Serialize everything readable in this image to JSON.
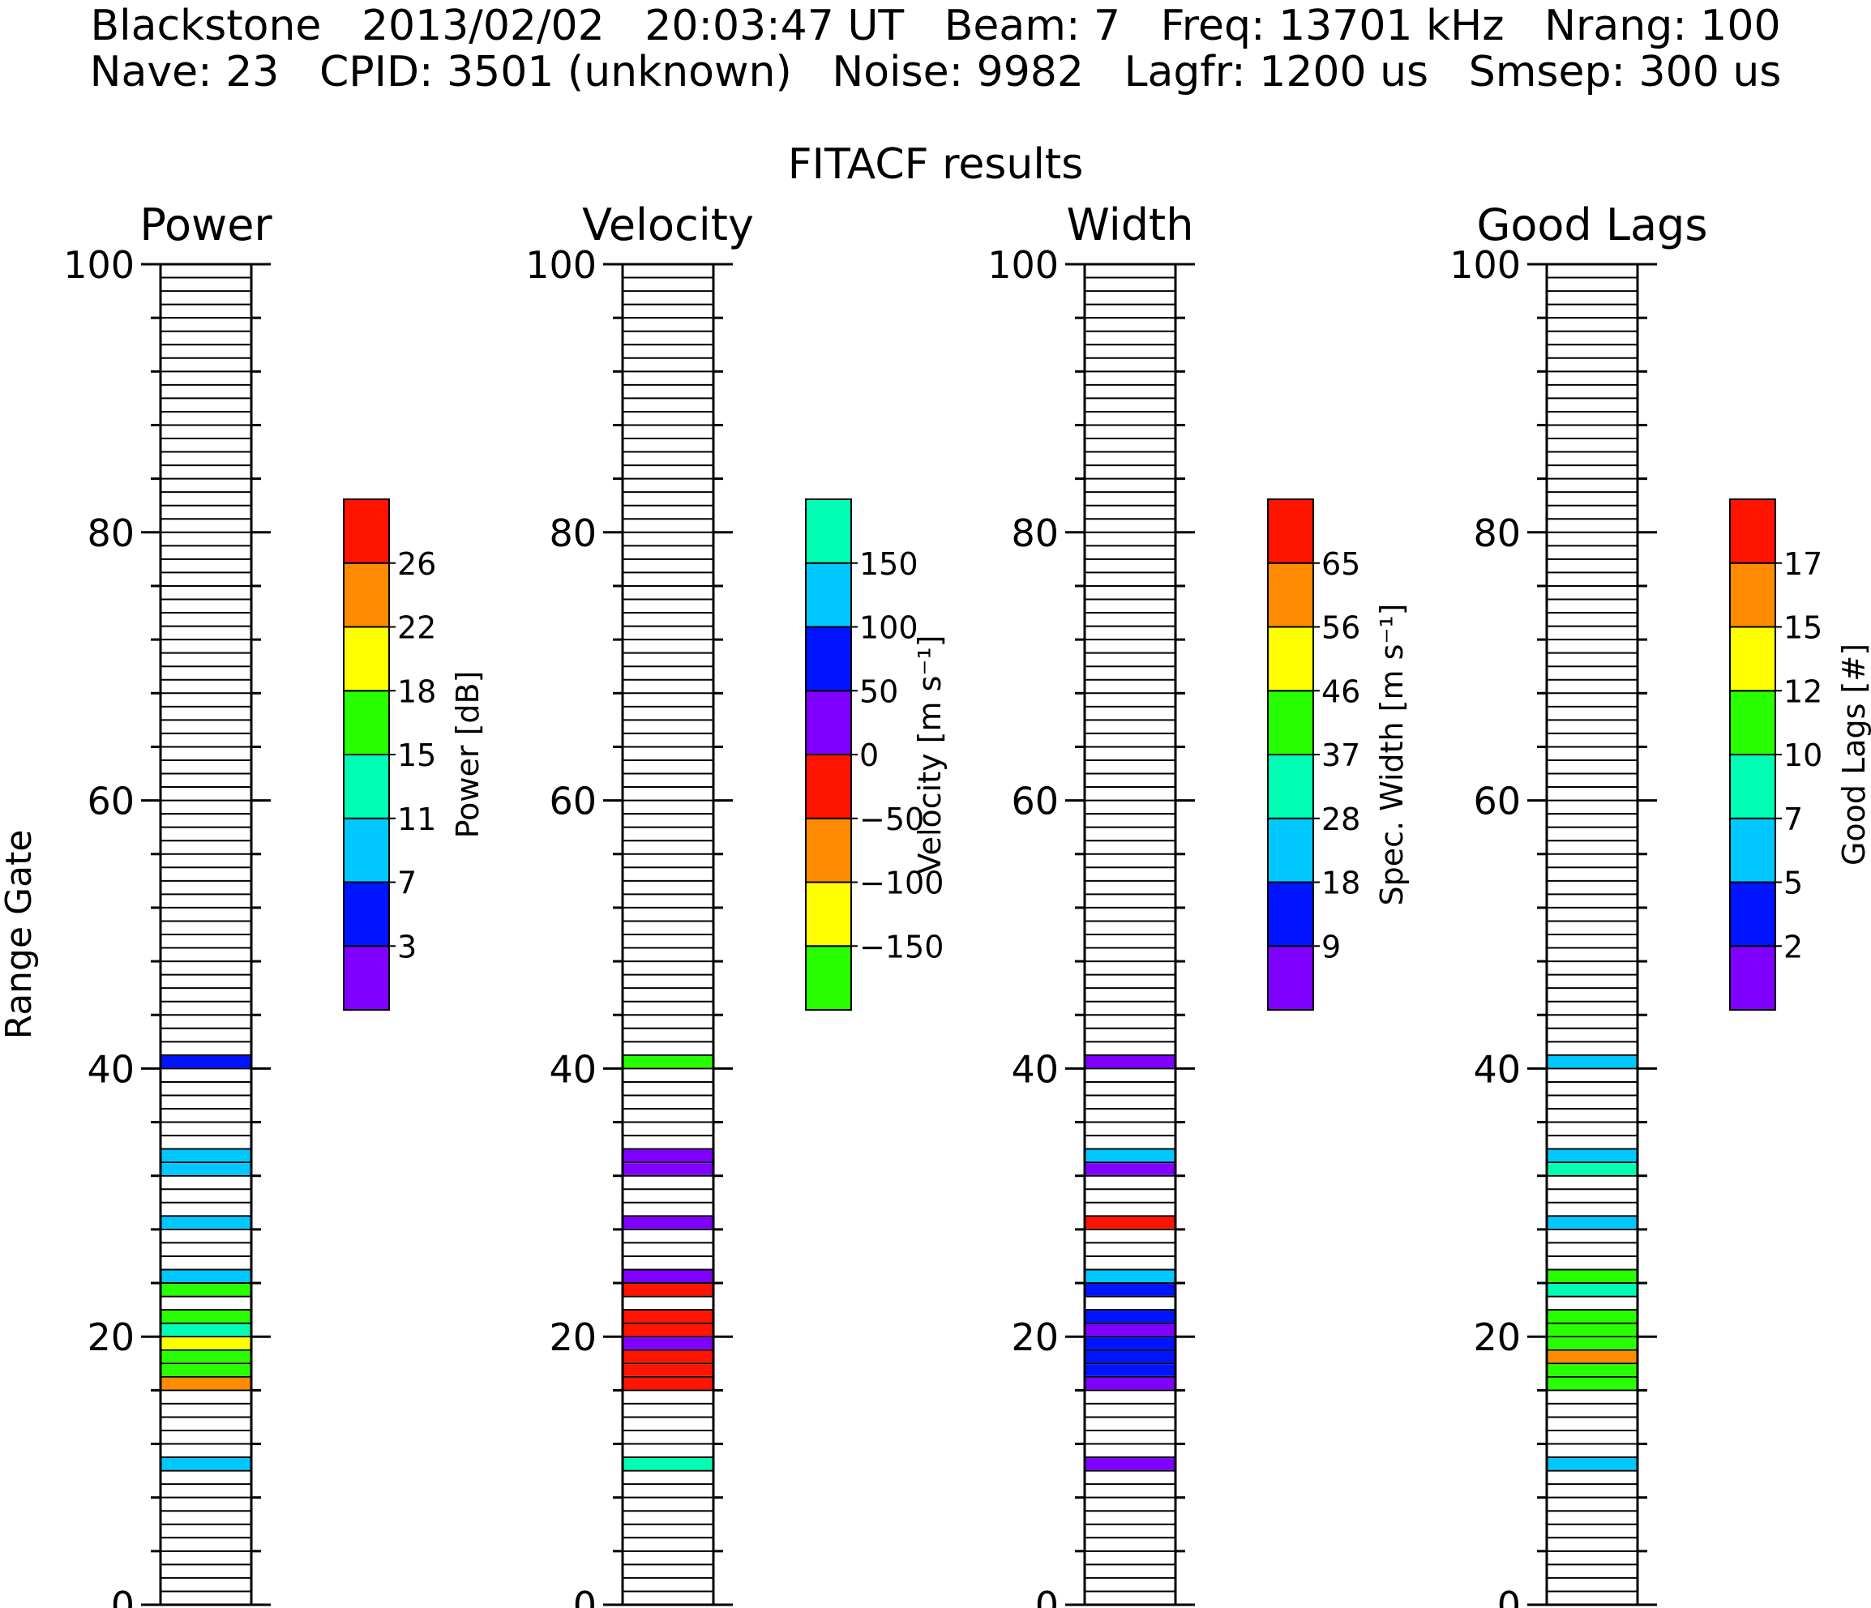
{
  "header": {
    "line1": "Blackstone   2013/02/02   20:03:47 UT   Beam: 7   Freq: 13701 kHz   Nrang: 100",
    "line2": "Nave: 23   CPID: 3501 (unknown)   Noise: 9982   Lagfr: 1200 us   Smsep: 300 us",
    "line3": "FITACF results"
  },
  "palette": [
    "#8000ff",
    "#0014ff",
    "#00c8ff",
    "#00ffb4",
    "#28ff00",
    "#ffff00",
    "#ff8c00",
    "#ff1400"
  ],
  "velocity_palette": [
    "#28ff00",
    "#ffff00",
    "#ff8c00",
    "#ff1400",
    "#8000ff",
    "#0014ff",
    "#00c8ff",
    "#00ffb4"
  ],
  "chart_data": [
    {
      "type": "heatmap",
      "title": "Power",
      "ylabel": "Range Gate",
      "ylim": [
        0,
        100
      ],
      "yticks": [
        "0",
        "20",
        "40",
        "60",
        "80",
        "100"
      ],
      "colorbar": {
        "label": "Power [dB]",
        "ticks": [
          "3",
          "7",
          "11",
          "15",
          "18",
          "22",
          "26"
        ]
      },
      "gates": [
        10,
        16,
        17,
        18,
        19,
        20,
        21,
        23,
        24,
        28,
        32,
        33,
        40
      ],
      "values": [
        7,
        22,
        15,
        15,
        18,
        11,
        15,
        15,
        7,
        7,
        7,
        7,
        3
      ]
    },
    {
      "type": "heatmap",
      "title": "Velocity",
      "ylim": [
        0,
        100
      ],
      "yticks": [
        "0",
        "20",
        "40",
        "60",
        "80",
        "100"
      ],
      "colorbar": {
        "label": "Velocity [m s-1]",
        "ticks": [
          "-150",
          "-100",
          "-50",
          "0",
          "50",
          "100",
          "150"
        ]
      },
      "gates": [
        10,
        16,
        17,
        18,
        19,
        20,
        21,
        23,
        24,
        28,
        32,
        33,
        40
      ],
      "values": [
        175,
        -40,
        -40,
        -40,
        25,
        -40,
        -40,
        -40,
        25,
        25,
        25,
        25,
        -175
      ]
    },
    {
      "type": "heatmap",
      "title": "Width",
      "ylim": [
        0,
        100
      ],
      "yticks": [
        "0",
        "20",
        "40",
        "60",
        "80",
        "100"
      ],
      "colorbar": {
        "label": "Spec. Width [m s-1]",
        "ticks": [
          "9",
          "18",
          "28",
          "37",
          "46",
          "56",
          "65"
        ]
      },
      "gates": [
        10,
        16,
        17,
        18,
        19,
        20,
        21,
        23,
        24,
        28,
        32,
        33,
        40
      ],
      "values": [
        4,
        4,
        13,
        13,
        13,
        4,
        13,
        13,
        23,
        70,
        4,
        23,
        4
      ]
    },
    {
      "type": "heatmap",
      "title": "Good Lags",
      "ylim": [
        0,
        100
      ],
      "yticks": [
        "0",
        "20",
        "40",
        "60",
        "80",
        "100"
      ],
      "colorbar": {
        "label": "Good Lags [#]",
        "ticks": [
          "2",
          "5",
          "7",
          "10",
          "12",
          "15",
          "17"
        ]
      },
      "gates": [
        10,
        16,
        17,
        18,
        19,
        20,
        21,
        23,
        24,
        28,
        32,
        33,
        40
      ],
      "values": [
        6,
        11,
        11,
        16,
        11,
        11,
        11,
        9,
        11,
        6,
        9,
        6,
        6
      ]
    }
  ]
}
